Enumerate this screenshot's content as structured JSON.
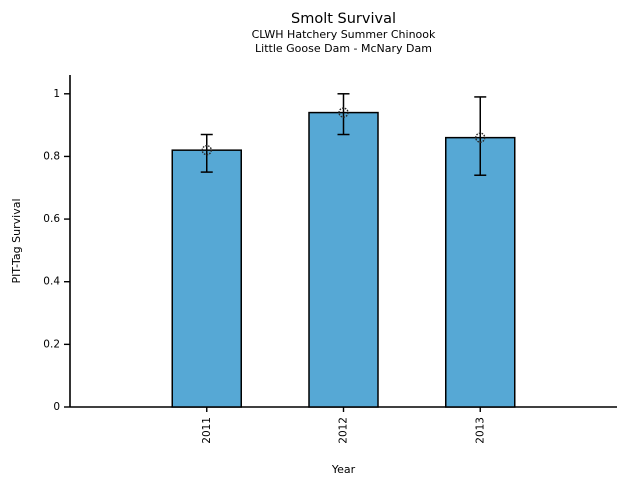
{
  "chart_data": {
    "type": "bar",
    "title": "Smolt Survival",
    "subtitle": [
      "CLWH Hatchery Summer Chinook",
      "Little Goose Dam - McNary Dam"
    ],
    "categories": [
      "2011",
      "2012",
      "2013"
    ],
    "values": [
      0.82,
      0.94,
      0.86
    ],
    "error_low": [
      0.75,
      0.87,
      0.74
    ],
    "error_high": [
      0.87,
      1.0,
      0.99
    ],
    "xlabel": "Year",
    "ylabel": "PIT-Tag Survival",
    "ylim": [
      0,
      1.06
    ],
    "yticks": [
      0,
      0.2,
      0.4,
      0.6,
      0.8,
      1
    ],
    "ytick_labels": [
      "0",
      "0.2",
      "0.4",
      "0.6",
      "0.8",
      "1"
    ],
    "bar_color": "#56a8d5",
    "bar_edge_color": "#000000",
    "error_bar_color": "#000000",
    "marker": "open-circle-dotted",
    "marker_color": "#2b2b2b",
    "axis_color": "#000000",
    "grid": false,
    "legend": false,
    "xtick_label_rotation_deg": 90
  }
}
